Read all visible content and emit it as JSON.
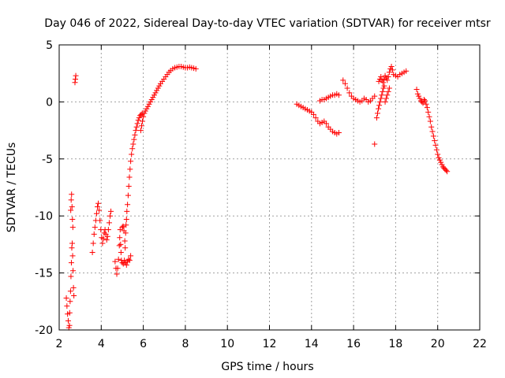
{
  "chart_data": {
    "type": "scatter",
    "title": "Day 046 of 2022, Sidereal Day-to-day VTEC variation (SDTVAR) for receiver mtsr",
    "xlabel": "GPS time / hours",
    "ylabel": "SDTVAR / TECUs",
    "xlim": [
      2,
      22
    ],
    "ylim": [
      -20,
      5
    ],
    "xticks": [
      2,
      4,
      6,
      8,
      10,
      12,
      14,
      16,
      18,
      20,
      22
    ],
    "yticks": [
      -20,
      -15,
      -10,
      -5,
      0,
      5
    ],
    "xtick_labels": [
      "2",
      "4",
      "6",
      "8",
      "10",
      "12",
      "14",
      "16",
      "18",
      "20",
      "22"
    ],
    "ytick_labels": [
      "-20",
      "-15",
      "-10",
      "-5",
      "0",
      "5"
    ],
    "grid": true,
    "marker": "plus",
    "color": "#ff0000",
    "series": [
      {
        "name": "SDTVAR",
        "points": [
          [
            2.34,
            -17.2
          ],
          [
            2.37,
            -17.9
          ],
          [
            2.4,
            -18.6
          ],
          [
            2.43,
            -19.2
          ],
          [
            2.46,
            -19.8
          ],
          [
            2.49,
            -19.6
          ],
          [
            2.5,
            -18.5
          ],
          [
            2.52,
            -17.5
          ],
          [
            2.54,
            -16.6
          ],
          [
            2.56,
            -15.3
          ],
          [
            2.58,
            -14.1
          ],
          [
            2.6,
            -12.8
          ],
          [
            2.55,
            -9.5
          ],
          [
            2.57,
            -8.6
          ],
          [
            2.59,
            -8.1
          ],
          [
            2.61,
            -9.2
          ],
          [
            2.63,
            -10.3
          ],
          [
            2.65,
            -11.0
          ],
          [
            2.62,
            -12.4
          ],
          [
            2.64,
            -13.5
          ],
          [
            2.66,
            -14.8
          ],
          [
            2.68,
            -16.3
          ],
          [
            2.7,
            -17.0
          ],
          [
            2.75,
            1.7
          ],
          [
            2.77,
            2.0
          ],
          [
            2.79,
            2.3
          ],
          [
            3.58,
            -13.2
          ],
          [
            3.62,
            -12.4
          ],
          [
            3.66,
            -11.6
          ],
          [
            3.7,
            -11.0
          ],
          [
            3.74,
            -10.4
          ],
          [
            3.78,
            -9.8
          ],
          [
            3.82,
            -9.2
          ],
          [
            3.86,
            -8.9
          ],
          [
            3.9,
            -9.5
          ],
          [
            3.94,
            -10.4
          ],
          [
            3.98,
            -11.2
          ],
          [
            4.02,
            -11.9
          ],
          [
            4.06,
            -12.4
          ],
          [
            4.1,
            -12.0
          ],
          [
            4.14,
            -11.5
          ],
          [
            4.18,
            -11.2
          ],
          [
            4.22,
            -11.6
          ],
          [
            4.26,
            -12.1
          ],
          [
            4.3,
            -11.8
          ],
          [
            4.34,
            -11.2
          ],
          [
            4.38,
            -10.6
          ],
          [
            4.42,
            -10.0
          ],
          [
            4.46,
            -9.6
          ],
          [
            4.66,
            -14.0
          ],
          [
            4.7,
            -14.6
          ],
          [
            4.74,
            -15.1
          ],
          [
            4.78,
            -14.6
          ],
          [
            4.82,
            -13.8
          ],
          [
            4.86,
            -12.6
          ],
          [
            4.88,
            -11.9
          ],
          [
            4.9,
            -11.2
          ],
          [
            4.92,
            -12.5
          ],
          [
            4.94,
            -13.2
          ],
          [
            4.96,
            -13.9
          ],
          [
            5.0,
            -14.1
          ],
          [
            5.05,
            -14.2
          ],
          [
            5.1,
            -13.9
          ],
          [
            5.15,
            -14.1
          ],
          [
            5.2,
            -14.3
          ],
          [
            5.25,
            -14.0
          ],
          [
            5.3,
            -13.8
          ],
          [
            5.35,
            -13.9
          ],
          [
            5.4,
            -13.5
          ],
          [
            5.0,
            -11.0
          ],
          [
            5.04,
            -10.9
          ],
          [
            5.08,
            -11.3
          ],
          [
            5.12,
            -12.2
          ],
          [
            5.14,
            -12.8
          ],
          [
            5.16,
            -11.5
          ],
          [
            5.18,
            -10.8
          ],
          [
            5.2,
            -10.3
          ],
          [
            5.22,
            -9.6
          ],
          [
            5.25,
            -9.0
          ],
          [
            5.28,
            -8.2
          ],
          [
            5.31,
            -7.4
          ],
          [
            5.34,
            -6.6
          ],
          [
            5.37,
            -5.9
          ],
          [
            5.4,
            -5.2
          ],
          [
            5.44,
            -4.6
          ],
          [
            5.48,
            -4.1
          ],
          [
            5.52,
            -3.7
          ],
          [
            5.56,
            -3.3
          ],
          [
            5.6,
            -2.9
          ],
          [
            5.64,
            -2.5
          ],
          [
            5.68,
            -2.2
          ],
          [
            5.72,
            -1.9
          ],
          [
            5.76,
            -1.6
          ],
          [
            5.8,
            -1.4
          ],
          [
            5.85,
            -1.2
          ],
          [
            5.9,
            -1.1
          ],
          [
            5.95,
            -1.0
          ],
          [
            5.88,
            -2.5
          ],
          [
            5.92,
            -2.1
          ],
          [
            5.96,
            -1.7
          ],
          [
            6.0,
            -1.3
          ],
          [
            6.05,
            -1.0
          ],
          [
            6.1,
            -0.8
          ],
          [
            6.16,
            -0.6
          ],
          [
            6.22,
            -0.4
          ],
          [
            6.28,
            -0.2
          ],
          [
            6.34,
            0.0
          ],
          [
            6.4,
            0.2
          ],
          [
            6.46,
            0.4
          ],
          [
            6.52,
            0.6
          ],
          [
            6.58,
            0.8
          ],
          [
            6.64,
            1.0
          ],
          [
            6.7,
            1.2
          ],
          [
            6.76,
            1.4
          ],
          [
            6.82,
            1.6
          ],
          [
            6.9,
            1.8
          ],
          [
            6.98,
            2.0
          ],
          [
            7.06,
            2.2
          ],
          [
            7.14,
            2.4
          ],
          [
            7.22,
            2.6
          ],
          [
            7.3,
            2.75
          ],
          [
            7.4,
            2.9
          ],
          [
            7.5,
            3.0
          ],
          [
            7.6,
            3.05
          ],
          [
            7.7,
            3.1
          ],
          [
            7.8,
            3.1
          ],
          [
            7.9,
            3.05
          ],
          [
            8.0,
            3.0
          ],
          [
            8.1,
            3.0
          ],
          [
            8.2,
            3.05
          ],
          [
            8.3,
            3.0
          ],
          [
            8.4,
            2.95
          ],
          [
            8.5,
            2.9
          ],
          [
            13.3,
            -0.2
          ],
          [
            13.4,
            -0.3
          ],
          [
            13.5,
            -0.4
          ],
          [
            13.6,
            -0.5
          ],
          [
            13.7,
            -0.6
          ],
          [
            13.8,
            -0.7
          ],
          [
            13.9,
            -0.8
          ],
          [
            14.0,
            -0.9
          ],
          [
            14.1,
            -1.1
          ],
          [
            14.2,
            -1.4
          ],
          [
            14.3,
            -1.7
          ],
          [
            14.4,
            -1.9
          ],
          [
            14.5,
            -1.8
          ],
          [
            14.6,
            -1.7
          ],
          [
            14.7,
            -1.9
          ],
          [
            14.8,
            -2.2
          ],
          [
            14.9,
            -2.4
          ],
          [
            15.0,
            -2.6
          ],
          [
            15.1,
            -2.7
          ],
          [
            15.2,
            -2.8
          ],
          [
            15.3,
            -2.7
          ],
          [
            14.4,
            0.1
          ],
          [
            14.5,
            0.2
          ],
          [
            14.6,
            0.2
          ],
          [
            14.7,
            0.3
          ],
          [
            14.8,
            0.4
          ],
          [
            14.9,
            0.5
          ],
          [
            15.0,
            0.6
          ],
          [
            15.1,
            0.6
          ],
          [
            15.2,
            0.7
          ],
          [
            15.3,
            0.6
          ],
          [
            15.5,
            1.9
          ],
          [
            15.6,
            1.6
          ],
          [
            15.7,
            1.2
          ],
          [
            15.8,
            0.8
          ],
          [
            15.9,
            0.5
          ],
          [
            16.0,
            0.3
          ],
          [
            16.1,
            0.2
          ],
          [
            16.2,
            0.1
          ],
          [
            16.3,
            0.0
          ],
          [
            16.4,
            0.1
          ],
          [
            16.5,
            0.3
          ],
          [
            16.6,
            0.2
          ],
          [
            16.7,
            0.0
          ],
          [
            16.8,
            0.1
          ],
          [
            16.9,
            0.3
          ],
          [
            17.0,
            0.5
          ],
          [
            17.0,
            -3.7
          ],
          [
            17.1,
            -1.4
          ],
          [
            17.14,
            -1.0
          ],
          [
            17.18,
            -0.6
          ],
          [
            17.22,
            -0.3
          ],
          [
            17.26,
            0.0
          ],
          [
            17.3,
            0.3
          ],
          [
            17.34,
            0.6
          ],
          [
            17.38,
            0.9
          ],
          [
            17.42,
            1.2
          ],
          [
            17.46,
            1.4
          ],
          [
            17.5,
            0.0
          ],
          [
            17.55,
            0.3
          ],
          [
            17.6,
            0.6
          ],
          [
            17.65,
            0.9
          ],
          [
            17.7,
            1.2
          ],
          [
            17.2,
            1.8
          ],
          [
            17.25,
            2.0
          ],
          [
            17.3,
            2.2
          ],
          [
            17.35,
            1.9
          ],
          [
            17.4,
            1.7
          ],
          [
            17.45,
            2.0
          ],
          [
            17.5,
            2.3
          ],
          [
            17.55,
            2.1
          ],
          [
            17.6,
            1.9
          ],
          [
            17.65,
            2.2
          ],
          [
            17.7,
            2.6
          ],
          [
            17.75,
            2.9
          ],
          [
            17.8,
            3.1
          ],
          [
            17.85,
            2.8
          ],
          [
            17.9,
            2.4
          ],
          [
            18.0,
            2.3
          ],
          [
            18.1,
            2.2
          ],
          [
            18.2,
            2.4
          ],
          [
            18.3,
            2.5
          ],
          [
            18.4,
            2.6
          ],
          [
            18.5,
            2.7
          ],
          [
            19.0,
            1.1
          ],
          [
            19.05,
            0.7
          ],
          [
            19.1,
            0.5
          ],
          [
            19.15,
            0.3
          ],
          [
            19.2,
            0.1
          ],
          [
            19.25,
            0.0
          ],
          [
            19.3,
            -0.1
          ],
          [
            19.35,
            0.2
          ],
          [
            19.4,
            0.1
          ],
          [
            19.45,
            -0.2
          ],
          [
            19.5,
            -0.5
          ],
          [
            19.55,
            -0.9
          ],
          [
            19.6,
            -1.3
          ],
          [
            19.65,
            -1.7
          ],
          [
            19.7,
            -2.2
          ],
          [
            19.75,
            -2.6
          ],
          [
            19.8,
            -3.0
          ],
          [
            19.85,
            -3.4
          ],
          [
            19.9,
            -3.8
          ],
          [
            19.95,
            -4.2
          ],
          [
            20.0,
            -4.6
          ],
          [
            20.05,
            -4.9
          ],
          [
            20.1,
            -5.1
          ],
          [
            20.15,
            -5.3
          ],
          [
            20.2,
            -5.5
          ],
          [
            20.25,
            -5.7
          ],
          [
            20.3,
            -5.8
          ],
          [
            20.35,
            -5.9
          ],
          [
            20.4,
            -6.0
          ],
          [
            20.45,
            -6.1
          ]
        ]
      }
    ]
  }
}
